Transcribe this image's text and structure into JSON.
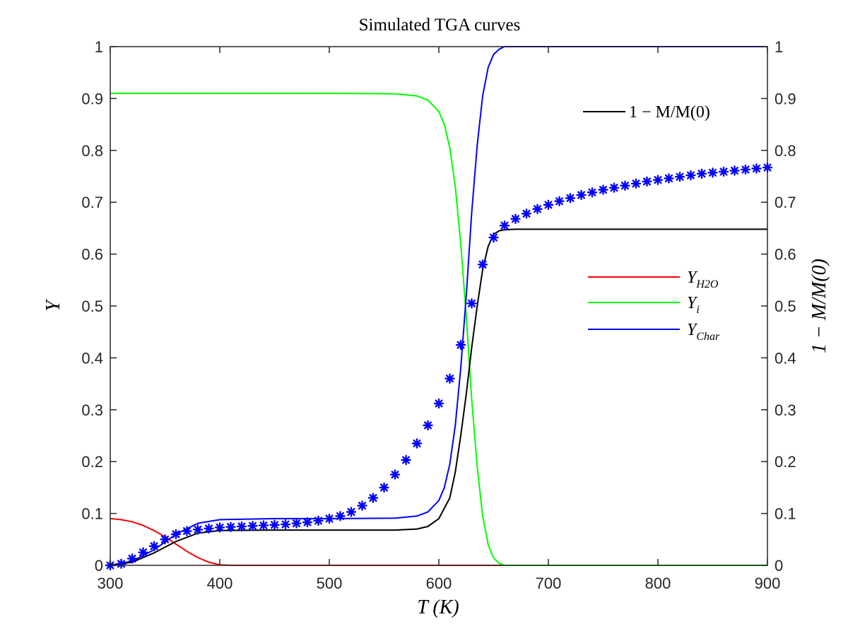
{
  "chart_data": {
    "type": "line",
    "title": "Simulated TGA curves",
    "xlabel": "T (K)",
    "ylabel": "Y",
    "y2label": "1 − M/M(0)",
    "xlim": [
      300,
      900
    ],
    "ylim": [
      0,
      1
    ],
    "y2lim": [
      0,
      1
    ],
    "xticks": [
      300,
      400,
      500,
      600,
      700,
      800,
      900
    ],
    "yticks": [
      0,
      0.1,
      0.2,
      0.3,
      0.4,
      0.5,
      0.6,
      0.7,
      0.8,
      0.9,
      1
    ],
    "xtick_labels": [
      "300",
      "400",
      "500",
      "600",
      "700",
      "800",
      "900"
    ],
    "ytick_labels": [
      "0",
      "0.1",
      "0.2",
      "0.3",
      "0.4",
      "0.5",
      "0.6",
      "0.7",
      "0.8",
      "0.9",
      "1"
    ],
    "grid": false,
    "series": [
      {
        "name": "Y_H2O",
        "label_main": "Y",
        "label_sub": "H2O",
        "axis": "left",
        "color": "#ff0000",
        "style": "line",
        "x": [
          300,
          310,
          320,
          330,
          340,
          350,
          360,
          370,
          380,
          390,
          400,
          410,
          420,
          900
        ],
        "y": [
          0.09,
          0.088,
          0.084,
          0.077,
          0.067,
          0.055,
          0.041,
          0.027,
          0.015,
          0.006,
          0.001,
          0.0,
          0.0,
          0.0
        ]
      },
      {
        "name": "Y_i",
        "label_main": "Y",
        "label_sub": "i",
        "axis": "left",
        "color": "#00ff00",
        "style": "line",
        "x": [
          300,
          400,
          500,
          560,
          580,
          590,
          600,
          605,
          610,
          615,
          620,
          625,
          630,
          635,
          640,
          645,
          650,
          655,
          660,
          670,
          900
        ],
        "y": [
          0.91,
          0.91,
          0.91,
          0.909,
          0.905,
          0.897,
          0.875,
          0.85,
          0.805,
          0.73,
          0.62,
          0.48,
          0.32,
          0.19,
          0.095,
          0.04,
          0.014,
          0.004,
          0.0,
          0.0,
          0.0
        ]
      },
      {
        "name": "Y_Char",
        "label_main": "Y",
        "label_sub": "Char",
        "axis": "left",
        "color": "#0000ff",
        "style": "line",
        "x": [
          300,
          320,
          340,
          360,
          380,
          400,
          450,
          500,
          560,
          580,
          590,
          600,
          605,
          610,
          615,
          620,
          625,
          630,
          635,
          640,
          645,
          650,
          655,
          660,
          670,
          900
        ],
        "y": [
          0.0,
          0.008,
          0.03,
          0.06,
          0.081,
          0.088,
          0.09,
          0.09,
          0.091,
          0.095,
          0.103,
          0.125,
          0.15,
          0.195,
          0.27,
          0.38,
          0.52,
          0.68,
          0.81,
          0.905,
          0.96,
          0.985,
          0.995,
          1.0,
          1.0,
          1.0
        ]
      },
      {
        "name": "1 − M/M(0)",
        "axis": "right",
        "color": "#000000",
        "style": "line",
        "x": [
          300,
          320,
          340,
          360,
          380,
          400,
          450,
          500,
          560,
          580,
          590,
          600,
          610,
          615,
          620,
          625,
          630,
          635,
          640,
          645,
          650,
          655,
          660,
          670,
          900
        ],
        "y": [
          0.0,
          0.006,
          0.024,
          0.046,
          0.062,
          0.067,
          0.068,
          0.068,
          0.068,
          0.07,
          0.075,
          0.09,
          0.13,
          0.18,
          0.25,
          0.33,
          0.42,
          0.5,
          0.57,
          0.615,
          0.638,
          0.645,
          0.647,
          0.648,
          0.648
        ]
      },
      {
        "name": "markers",
        "axis": "right",
        "color": "#0000ff",
        "style": "marker",
        "x": [
          300,
          310,
          320,
          330,
          340,
          350,
          360,
          370,
          380,
          390,
          400,
          410,
          420,
          430,
          440,
          450,
          460,
          470,
          480,
          490,
          500,
          510,
          520,
          530,
          540,
          550,
          560,
          570,
          580,
          590,
          600,
          610,
          620,
          630,
          640,
          650,
          660,
          670,
          680,
          690,
          700,
          710,
          720,
          730,
          740,
          750,
          760,
          770,
          780,
          790,
          800,
          810,
          820,
          830,
          840,
          850,
          860,
          870,
          880,
          890,
          900
        ],
        "y": [
          0.0,
          0.003,
          0.013,
          0.025,
          0.037,
          0.05,
          0.06,
          0.066,
          0.069,
          0.071,
          0.073,
          0.074,
          0.075,
          0.076,
          0.077,
          0.078,
          0.079,
          0.081,
          0.083,
          0.086,
          0.09,
          0.095,
          0.103,
          0.115,
          0.13,
          0.15,
          0.175,
          0.203,
          0.235,
          0.27,
          0.312,
          0.36,
          0.425,
          0.505,
          0.58,
          0.632,
          0.655,
          0.668,
          0.678,
          0.687,
          0.695,
          0.702,
          0.708,
          0.714,
          0.719,
          0.724,
          0.728,
          0.732,
          0.736,
          0.74,
          0.743,
          0.746,
          0.749,
          0.752,
          0.755,
          0.757,
          0.759,
          0.761,
          0.763,
          0.765,
          0.767
        ]
      }
    ],
    "legends": [
      {
        "position": "upper-right",
        "entries": [
          "1 − M/M(0)"
        ]
      },
      {
        "position": "right",
        "entries": [
          "Y_H2O",
          "Y_i",
          "Y_Char"
        ]
      }
    ]
  }
}
